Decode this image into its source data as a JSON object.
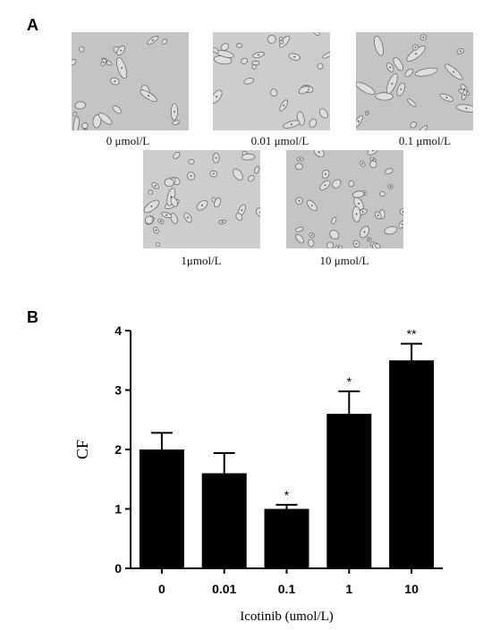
{
  "panel_a": {
    "letter": "A",
    "images": [
      {
        "caption": "0 μmol/L"
      },
      {
        "caption": "0.01 μmol/L"
      },
      {
        "caption": "0.1 μmol/L"
      },
      {
        "caption": "1μmol/L"
      },
      {
        "caption": "10 μmol/L"
      }
    ]
  },
  "panel_b": {
    "letter": "B"
  },
  "chart_data": {
    "type": "bar",
    "categories": [
      "0",
      "0.01",
      "0.1",
      "1",
      "10"
    ],
    "values": [
      2.0,
      1.6,
      1.0,
      2.6,
      3.5
    ],
    "errors": [
      0.28,
      0.34,
      0.07,
      0.38,
      0.28
    ],
    "significance": [
      "",
      "",
      "*",
      "*",
      "**"
    ],
    "xlabel": "Icotinib (umol/L)",
    "ylabel": "CF",
    "ylim": [
      0,
      4
    ],
    "yticks": [
      0,
      1,
      2,
      3,
      4
    ],
    "bar_color": "#000000",
    "grid": false
  }
}
